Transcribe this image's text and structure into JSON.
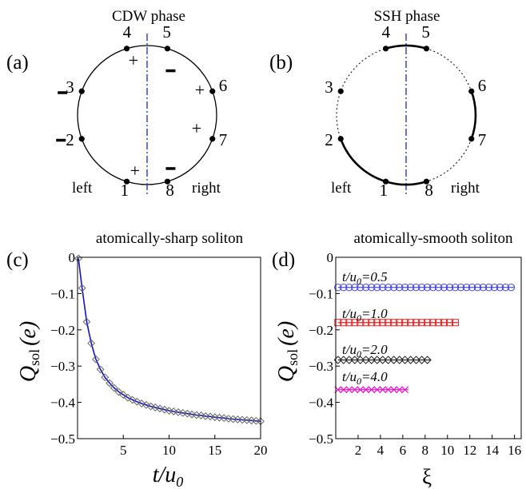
{
  "panel_a": {
    "label": "(a)",
    "title": "CDW phase",
    "left": "left",
    "right": "right",
    "sites": [
      "1",
      "2",
      "3",
      "4",
      "5",
      "6",
      "7",
      "8"
    ],
    "charges": [
      "+",
      "-",
      "-",
      "+",
      "-",
      "+",
      "+",
      "-"
    ]
  },
  "panel_b": {
    "label": "(b)",
    "title": "SSH phase",
    "left": "left",
    "right": "right",
    "sites": [
      "1",
      "2",
      "3",
      "4",
      "5",
      "6",
      "7",
      "8"
    ],
    "strong_bonds": [
      [
        2,
        1
      ],
      [
        4,
        5
      ],
      [
        6,
        7
      ],
      [
        8,
        1
      ]
    ]
  },
  "panel_c": {
    "label": "(c)",
    "title": "atomically-sharp soliton",
    "xlabel": "t/u",
    "xlabel_sub": "0",
    "ylabel": "Q",
    "ylabel_sub": "sol",
    "ylabel_unit": "(e)",
    "xticks": [
      "5",
      "10",
      "15",
      "20"
    ],
    "yticks": [
      "0",
      "−0.1",
      "−0.2",
      "−0.3",
      "−0.4",
      "−0.5"
    ]
  },
  "panel_d": {
    "label": "(d)",
    "title": "atomically-smooth soliton",
    "xlabel": "ξ",
    "ylabel": "Q",
    "ylabel_sub": "sol",
    "ylabel_unit": "(e)",
    "xticks": [
      "2",
      "4",
      "6",
      "8",
      "10",
      "12",
      "14",
      "16"
    ],
    "yticks": [
      "0",
      "−0.1",
      "−0.2",
      "−0.3",
      "−0.4",
      "−0.5"
    ],
    "curve_labels": [
      {
        "t": "t/u",
        "sub": "0",
        "val": "=0.5"
      },
      {
        "t": "t/u",
        "sub": "0",
        "val": "=1.0"
      },
      {
        "t": "t/u",
        "sub": "0",
        "val": "=2.0"
      },
      {
        "t": "t/u",
        "sub": "0",
        "val": "=4.0"
      }
    ]
  },
  "chart_data": [
    {
      "type": "line",
      "title": "atomically-sharp soliton",
      "xlabel": "t/u0",
      "ylabel": "Qsol (e)",
      "xlim": [
        0,
        20
      ],
      "ylim": [
        -0.5,
        0
      ],
      "series": [
        {
          "color": "#1010cc",
          "marker": "diamond",
          "x": [
            0.1,
            0.5,
            1,
            1.5,
            2,
            2.5,
            3,
            3.5,
            4,
            4.5,
            5,
            5.5,
            6,
            6.5,
            7,
            7.5,
            8,
            8.5,
            9,
            9.5,
            10,
            10.5,
            11,
            11.5,
            12,
            12.5,
            13,
            13.5,
            14,
            14.5,
            15,
            15.5,
            16,
            16.5,
            17,
            17.5,
            18,
            18.5,
            19,
            19.5,
            20
          ],
          "y": [
            -0.003,
            -0.085,
            -0.178,
            -0.237,
            -0.281,
            -0.309,
            -0.331,
            -0.347,
            -0.36,
            -0.371,
            -0.379,
            -0.387,
            -0.393,
            -0.398,
            -0.403,
            -0.407,
            -0.411,
            -0.414,
            -0.417,
            -0.42,
            -0.423,
            -0.425,
            -0.427,
            -0.429,
            -0.431,
            -0.433,
            -0.435,
            -0.436,
            -0.438,
            -0.439,
            -0.441,
            -0.442,
            -0.443,
            -0.445,
            -0.446,
            -0.447,
            -0.448,
            -0.449,
            -0.45,
            -0.451,
            -0.452
          ]
        }
      ]
    },
    {
      "type": "scatter",
      "title": "atomically-smooth soliton",
      "xlabel": "ξ",
      "ylabel": "Qsol (e)",
      "xlim": [
        0,
        16
      ],
      "ylim": [
        -0.5,
        0
      ],
      "series": [
        {
          "color": "#4444ee",
          "marker": "circle",
          "t_over_u0": 0.5,
          "value": -0.083,
          "xmax": 16
        },
        {
          "color": "#ee2222",
          "marker": "square",
          "t_over_u0": 1.0,
          "value": -0.18,
          "xmax": 11
        },
        {
          "color": "#222222",
          "marker": "diamond",
          "t_over_u0": 2.0,
          "value": -0.283,
          "xmax": 8.5
        },
        {
          "color": "#ee11cc",
          "marker": "x",
          "t_over_u0": 4.0,
          "value": -0.365,
          "xmax": 6.5
        }
      ]
    }
  ]
}
